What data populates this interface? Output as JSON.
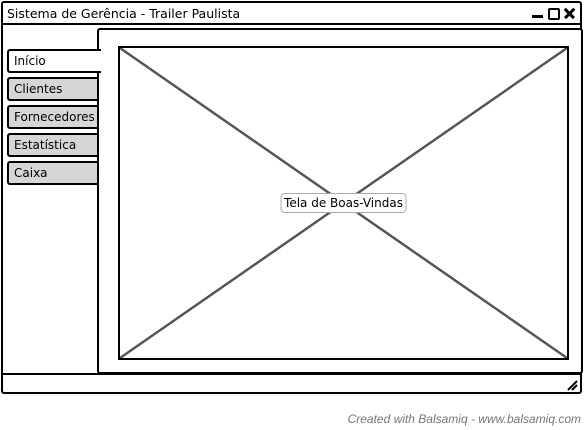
{
  "window": {
    "title": "Sistema de Gerência - Trailer Paulista",
    "controls": {
      "minimize": "minimize-icon",
      "maximize": "maximize-icon",
      "close": "close-icon"
    }
  },
  "tabs": [
    {
      "label": "Início",
      "active": true
    },
    {
      "label": "Clientes",
      "active": false
    },
    {
      "label": "Fornecedores",
      "active": false
    },
    {
      "label": "Estatística",
      "active": false
    },
    {
      "label": "Caixa",
      "active": false
    }
  ],
  "main": {
    "placeholder_label": "Tela de Boas-Vindas"
  },
  "footer": {
    "text": "Created with Balsamiq - www.balsamiq.com"
  },
  "colors": {
    "stroke": "#000000",
    "tab_inactive": "#d6d6d6",
    "footer_text": "#777777"
  }
}
